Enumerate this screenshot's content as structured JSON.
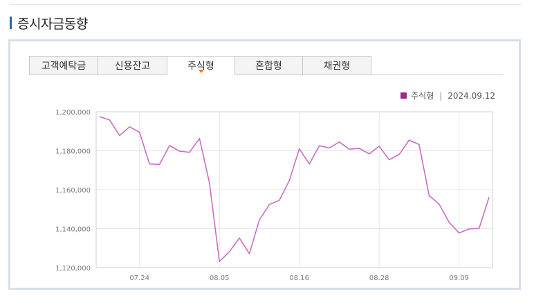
{
  "section": {
    "title": "증시자금동향"
  },
  "tabs": [
    {
      "label": "고객예탁금",
      "active": false
    },
    {
      "label": "신용잔고",
      "active": false
    },
    {
      "label": "주식형",
      "active": true
    },
    {
      "label": "혼합형",
      "active": false
    },
    {
      "label": "채권형",
      "active": false
    }
  ],
  "legend": {
    "series_name": "주식형",
    "separator": "|",
    "date": "2024.09.12",
    "color": "#9a2a86"
  },
  "chart_data": {
    "type": "line",
    "title": "",
    "xlabel": "",
    "ylabel": "",
    "ylim": [
      1120000,
      1200000
    ],
    "yticks": [
      1120000,
      1140000,
      1160000,
      1180000,
      1200000
    ],
    "ytick_labels": [
      "1,120,000",
      "1,140,000",
      "1,160,000",
      "1,180,000",
      "1,200,000"
    ],
    "xtick_labels": [
      {
        "label": "07.24",
        "index": 4
      },
      {
        "label": "08.05",
        "index": 12
      },
      {
        "label": "08.16",
        "index": 20
      },
      {
        "label": "08.28",
        "index": 28
      },
      {
        "label": "09.09",
        "index": 36
      }
    ],
    "grid": true,
    "line_color": "#c86ec0",
    "series": [
      {
        "name": "주식형",
        "values": [
          1197500,
          1195800,
          1187800,
          1192300,
          1189500,
          1173200,
          1173000,
          1182700,
          1179800,
          1179200,
          1186300,
          1163500,
          1123200,
          1128200,
          1135200,
          1127200,
          1144500,
          1152400,
          1154600,
          1164700,
          1181000,
          1173200,
          1182600,
          1181400,
          1184500,
          1180800,
          1181200,
          1178400,
          1182300,
          1175400,
          1178100,
          1185500,
          1183200,
          1157000,
          1152600,
          1143300,
          1137800,
          1139900,
          1140100,
          1156200
        ]
      }
    ]
  }
}
